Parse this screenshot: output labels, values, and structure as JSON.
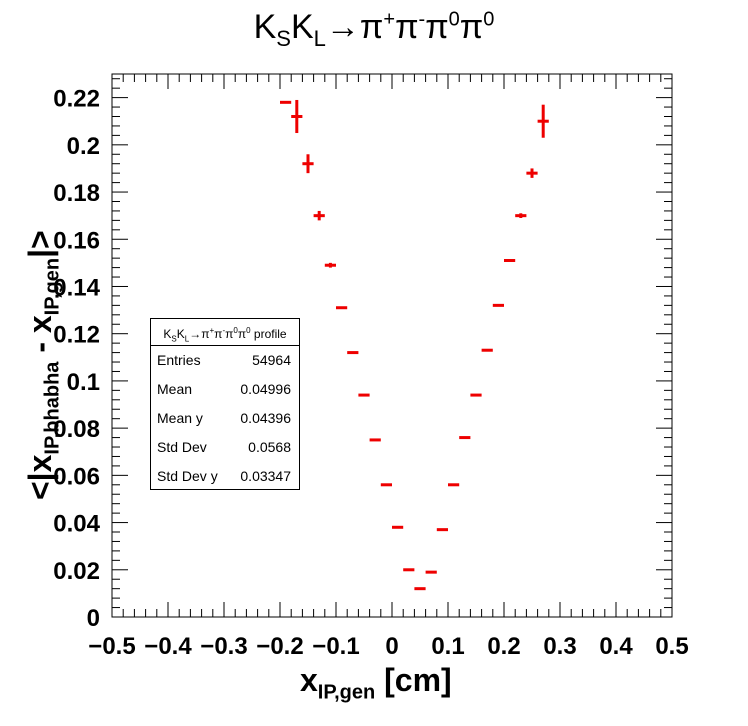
{
  "title": {
    "base": "K",
    "s1": "S",
    "mid": "K",
    "s2": "L",
    "arrow": "→π",
    "p1": "+",
    "pi2": "π",
    "p2": "-",
    "pi3": "π",
    "p3": "0",
    "pi4": "π",
    "p4": "0"
  },
  "xlabel": {
    "main": "x",
    "sub": "IP,gen",
    "unit": " [cm]"
  },
  "ylabel": {
    "pre": "<|x",
    "sub1": "IP,bhabha",
    "mid": " - x",
    "sub2": "IP,gen",
    "post": "|>"
  },
  "stats": {
    "header": {
      "a": "K",
      "b": "S",
      "c": "K",
      "d": "L",
      "e": "→π",
      "f": "+",
      "g": "π",
      "h": "-",
      "i": "π",
      "j": "0",
      "k": "π",
      "l": "0",
      "m": " profile"
    },
    "rows": [
      {
        "key": "Entries",
        "value": "54964"
      },
      {
        "key": "Mean",
        "value": "0.04996"
      },
      {
        "key": "Mean y",
        "value": "0.04396"
      },
      {
        "key": "Std Dev",
        "value": "0.0568"
      },
      {
        "key": "Std Dev y",
        "value": "0.03347"
      }
    ]
  },
  "chart_data": {
    "type": "scatter",
    "title": "KSKL→π+π-π0π0",
    "xlabel": "xIP,gen [cm]",
    "ylabel": "<|xIP,bhabha - xIP,gen|>",
    "xlim": [
      -0.5,
      0.5
    ],
    "ylim": [
      0,
      0.23
    ],
    "x_ticks": [
      "−0.5",
      "−0.4",
      "−0.3",
      "−0.2",
      "−0.1",
      "0",
      "0.1",
      "0.2",
      "0.3",
      "0.4",
      "0.5"
    ],
    "y_ticks": [
      "0",
      "0.02",
      "0.04",
      "0.06",
      "0.08",
      "0.1",
      "0.12",
      "0.14",
      "0.16",
      "0.18",
      "0.2",
      "0.22"
    ],
    "color": "#ee0000",
    "points": [
      {
        "x": -0.19,
        "y": 0.218,
        "yerr": 0.0
      },
      {
        "x": -0.17,
        "y": 0.212,
        "yerr": 0.007
      },
      {
        "x": -0.15,
        "y": 0.192,
        "yerr": 0.004
      },
      {
        "x": -0.13,
        "y": 0.17,
        "yerr": 0.002
      },
      {
        "x": -0.11,
        "y": 0.149,
        "yerr": 0.001
      },
      {
        "x": -0.09,
        "y": 0.131,
        "yerr": 0.0
      },
      {
        "x": -0.07,
        "y": 0.112,
        "yerr": 0.0
      },
      {
        "x": -0.05,
        "y": 0.094,
        "yerr": 0.0
      },
      {
        "x": -0.03,
        "y": 0.075,
        "yerr": 0.0
      },
      {
        "x": -0.01,
        "y": 0.056,
        "yerr": 0.0
      },
      {
        "x": 0.01,
        "y": 0.038,
        "yerr": 0.0
      },
      {
        "x": 0.03,
        "y": 0.02,
        "yerr": 0.0
      },
      {
        "x": 0.05,
        "y": 0.012,
        "yerr": 0.0
      },
      {
        "x": 0.07,
        "y": 0.019,
        "yerr": 0.0
      },
      {
        "x": 0.09,
        "y": 0.037,
        "yerr": 0.0
      },
      {
        "x": 0.11,
        "y": 0.056,
        "yerr": 0.0
      },
      {
        "x": 0.13,
        "y": 0.076,
        "yerr": 0.0
      },
      {
        "x": 0.15,
        "y": 0.094,
        "yerr": 0.0
      },
      {
        "x": 0.17,
        "y": 0.113,
        "yerr": 0.0
      },
      {
        "x": 0.19,
        "y": 0.132,
        "yerr": 0.0
      },
      {
        "x": 0.21,
        "y": 0.151,
        "yerr": 0.0
      },
      {
        "x": 0.23,
        "y": 0.17,
        "yerr": 0.001
      },
      {
        "x": 0.25,
        "y": 0.188,
        "yerr": 0.002
      },
      {
        "x": 0.27,
        "y": 0.21,
        "yerr": 0.007
      }
    ]
  }
}
